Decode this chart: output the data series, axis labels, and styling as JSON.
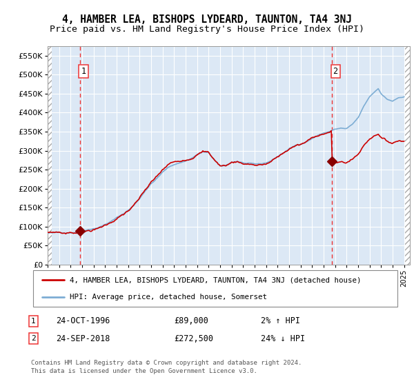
{
  "title": "4, HAMBER LEA, BISHOPS LYDEARD, TAUNTON, TA4 3NJ",
  "subtitle": "Price paid vs. HM Land Registry's House Price Index (HPI)",
  "ylim": [
    0,
    575000
  ],
  "yticks": [
    0,
    50000,
    100000,
    150000,
    200000,
    250000,
    300000,
    350000,
    400000,
    450000,
    500000,
    550000
  ],
  "ytick_labels": [
    "£0",
    "£50K",
    "£100K",
    "£150K",
    "£200K",
    "£250K",
    "£300K",
    "£350K",
    "£400K",
    "£450K",
    "£500K",
    "£550K"
  ],
  "xlim_start": 1994.0,
  "xlim_end": 2025.5,
  "background_color": "#dce8f5",
  "grid_color": "#ffffff",
  "red_line_color": "#cc0000",
  "blue_line_color": "#7dadd4",
  "marker_color": "#880000",
  "vline_color": "#ee3333",
  "sale1_x": 1996.82,
  "sale1_y": 89000,
  "sale2_x": 2018.73,
  "sale2_y": 272500,
  "legend_line1": "4, HAMBER LEA, BISHOPS LYDEARD, TAUNTON, TA4 3NJ (detached house)",
  "legend_line2": "HPI: Average price, detached house, Somerset",
  "ann1_label": "1",
  "ann1_date": "24-OCT-1996",
  "ann1_price": "£89,000",
  "ann1_hpi": "2% ↑ HPI",
  "ann2_label": "2",
  "ann2_date": "24-SEP-2018",
  "ann2_price": "£272,500",
  "ann2_hpi": "24% ↓ HPI",
  "footer": "Contains HM Land Registry data © Crown copyright and database right 2024.\nThis data is licensed under the Open Government Licence v3.0."
}
